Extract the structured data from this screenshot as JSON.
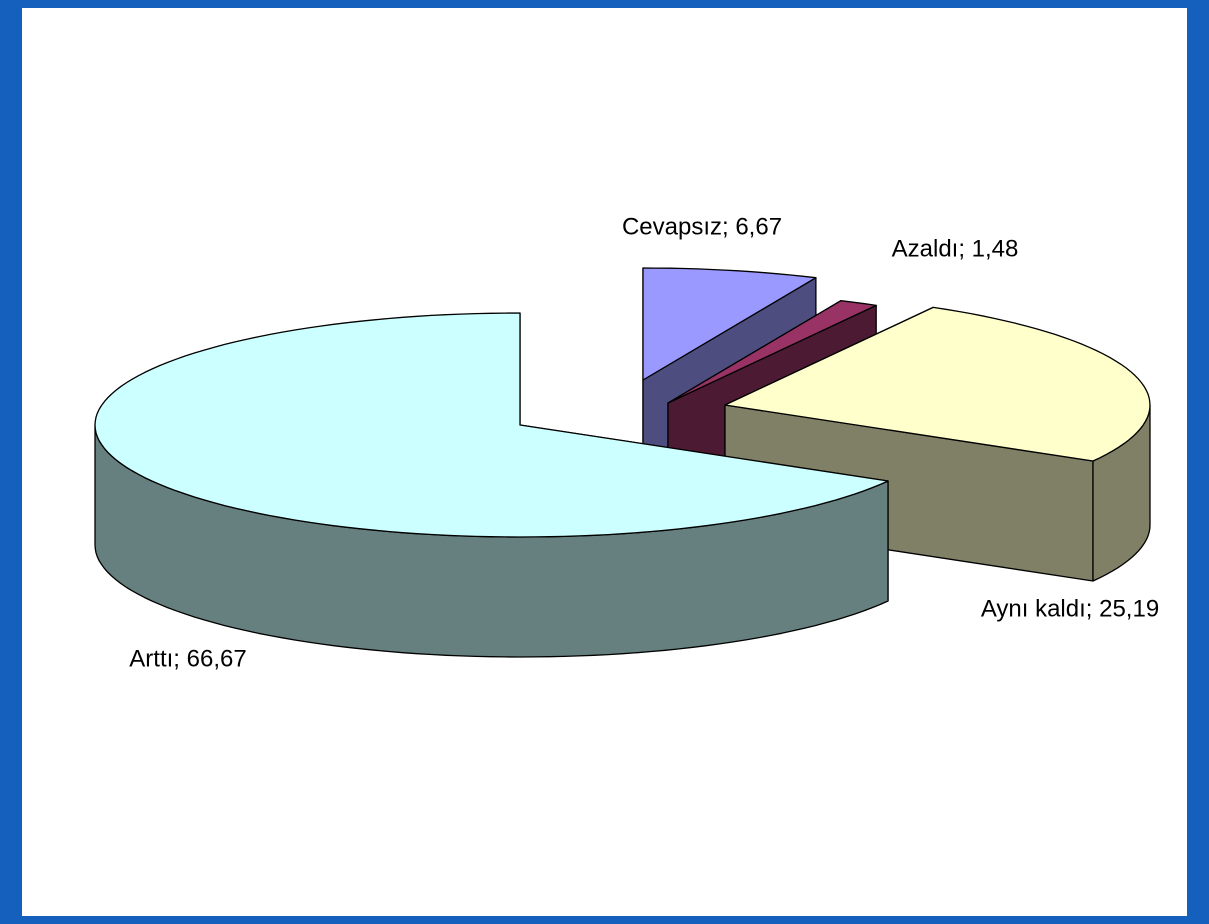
{
  "chart_data": {
    "type": "pie3d",
    "values": [
      6.67,
      1.48,
      25.19,
      66.67
    ],
    "value_labels": [
      "Cevapsız; 6,67",
      "Azaldı; 1,48",
      "Aynı kaldı; 25,19",
      "Arttı; 66,67"
    ],
    "colors": [
      "#9999ff",
      "#993366",
      "#ffffcc",
      "#ccffff"
    ],
    "side_colors": [
      "#4d4d80",
      "#4d1a33",
      "#808066",
      "#668080"
    ]
  }
}
